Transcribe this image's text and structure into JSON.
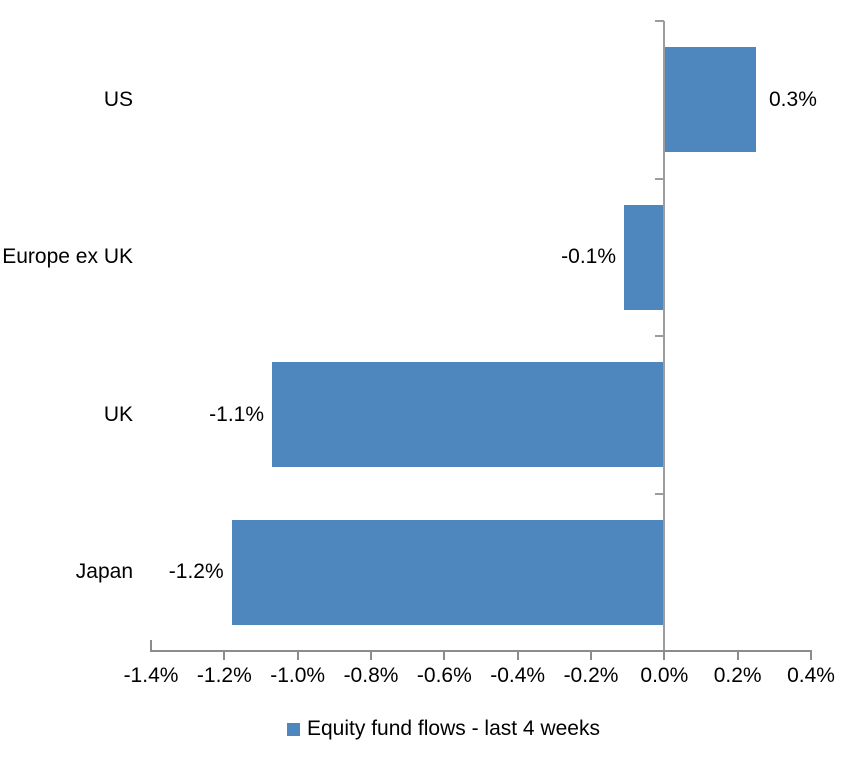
{
  "chart_data": {
    "type": "bar",
    "orientation": "horizontal",
    "title": "",
    "categories": [
      "US",
      "Europe ex UK",
      "UK",
      "Japan"
    ],
    "series": [
      {
        "name": "Equity fund flows - last 4 weeks",
        "values": [
          0.3,
          -0.1,
          -1.1,
          -1.2
        ],
        "value_labels": [
          "0.3%",
          "-0.1%",
          "-1.1%",
          "-1.2%"
        ],
        "plot_values": [
          0.25,
          -0.11,
          -1.07,
          -1.18
        ]
      }
    ],
    "xlabel": "",
    "ylabel": "",
    "xlim": [
      -1.4,
      0.4
    ],
    "x_tick_step": 0.2,
    "x_tick_labels": [
      "-1.4%",
      "-1.2%",
      "-1.0%",
      "-0.8%",
      "-0.6%",
      "-0.4%",
      "-0.2%",
      "0.0%",
      "0.2%",
      "0.4%"
    ],
    "grid": false,
    "legend": {
      "position": "bottom",
      "entries": [
        {
          "label": "Equity fund flows - last 4 weeks",
          "color": "#4E87BE"
        }
      ]
    },
    "colors": {
      "bar": "#4E87BE",
      "x_axis": "#8C8C8C",
      "zero_axis": "#9C9C9C",
      "text": "#000000"
    }
  }
}
